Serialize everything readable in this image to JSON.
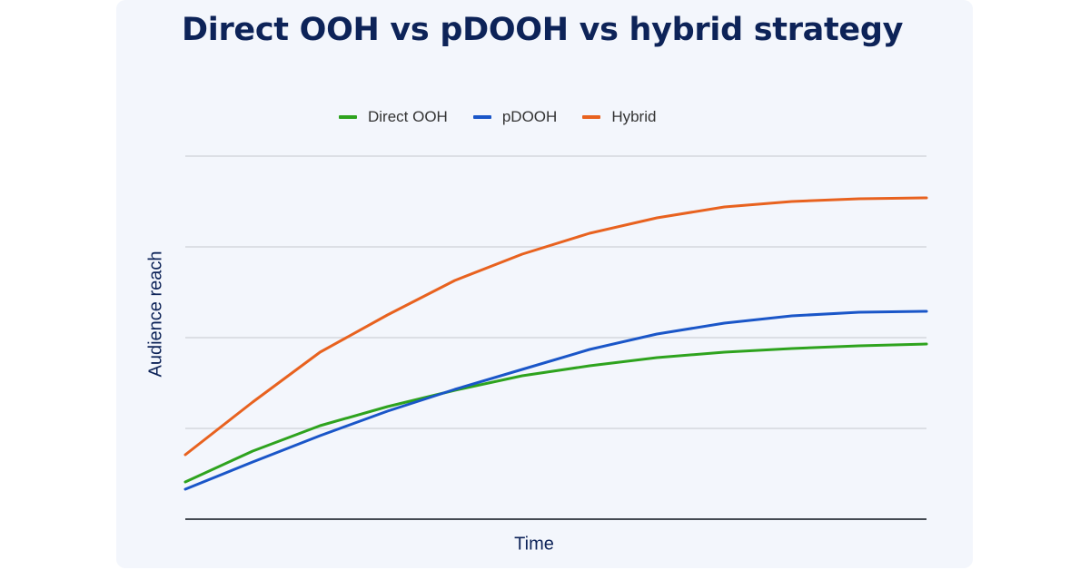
{
  "chart_data": {
    "type": "line",
    "title": "Direct OOH vs pDOOH vs hybrid strategy",
    "xlabel": "Time",
    "ylabel": "Audience reach",
    "xlim": [
      0,
      11
    ],
    "ylim": [
      0,
      4
    ],
    "grid": true,
    "legend_position": "top-center",
    "x": [
      0,
      1,
      2,
      3,
      4,
      5,
      6,
      7,
      8,
      9,
      10,
      11
    ],
    "series": [
      {
        "name": "Direct OOH",
        "color": "#2ea31e",
        "values": [
          0.41,
          0.75,
          1.03,
          1.24,
          1.42,
          1.58,
          1.69,
          1.78,
          1.84,
          1.88,
          1.91,
          1.93
        ]
      },
      {
        "name": "pDOOH",
        "color": "#1a56c8",
        "values": [
          0.33,
          0.63,
          0.92,
          1.19,
          1.43,
          1.65,
          1.87,
          2.04,
          2.16,
          2.24,
          2.28,
          2.29
        ]
      },
      {
        "name": "Hybrid",
        "color": "#e8621f",
        "values": [
          0.71,
          1.29,
          1.84,
          2.25,
          2.63,
          2.92,
          3.15,
          3.32,
          3.44,
          3.5,
          3.53,
          3.54
        ]
      }
    ]
  }
}
